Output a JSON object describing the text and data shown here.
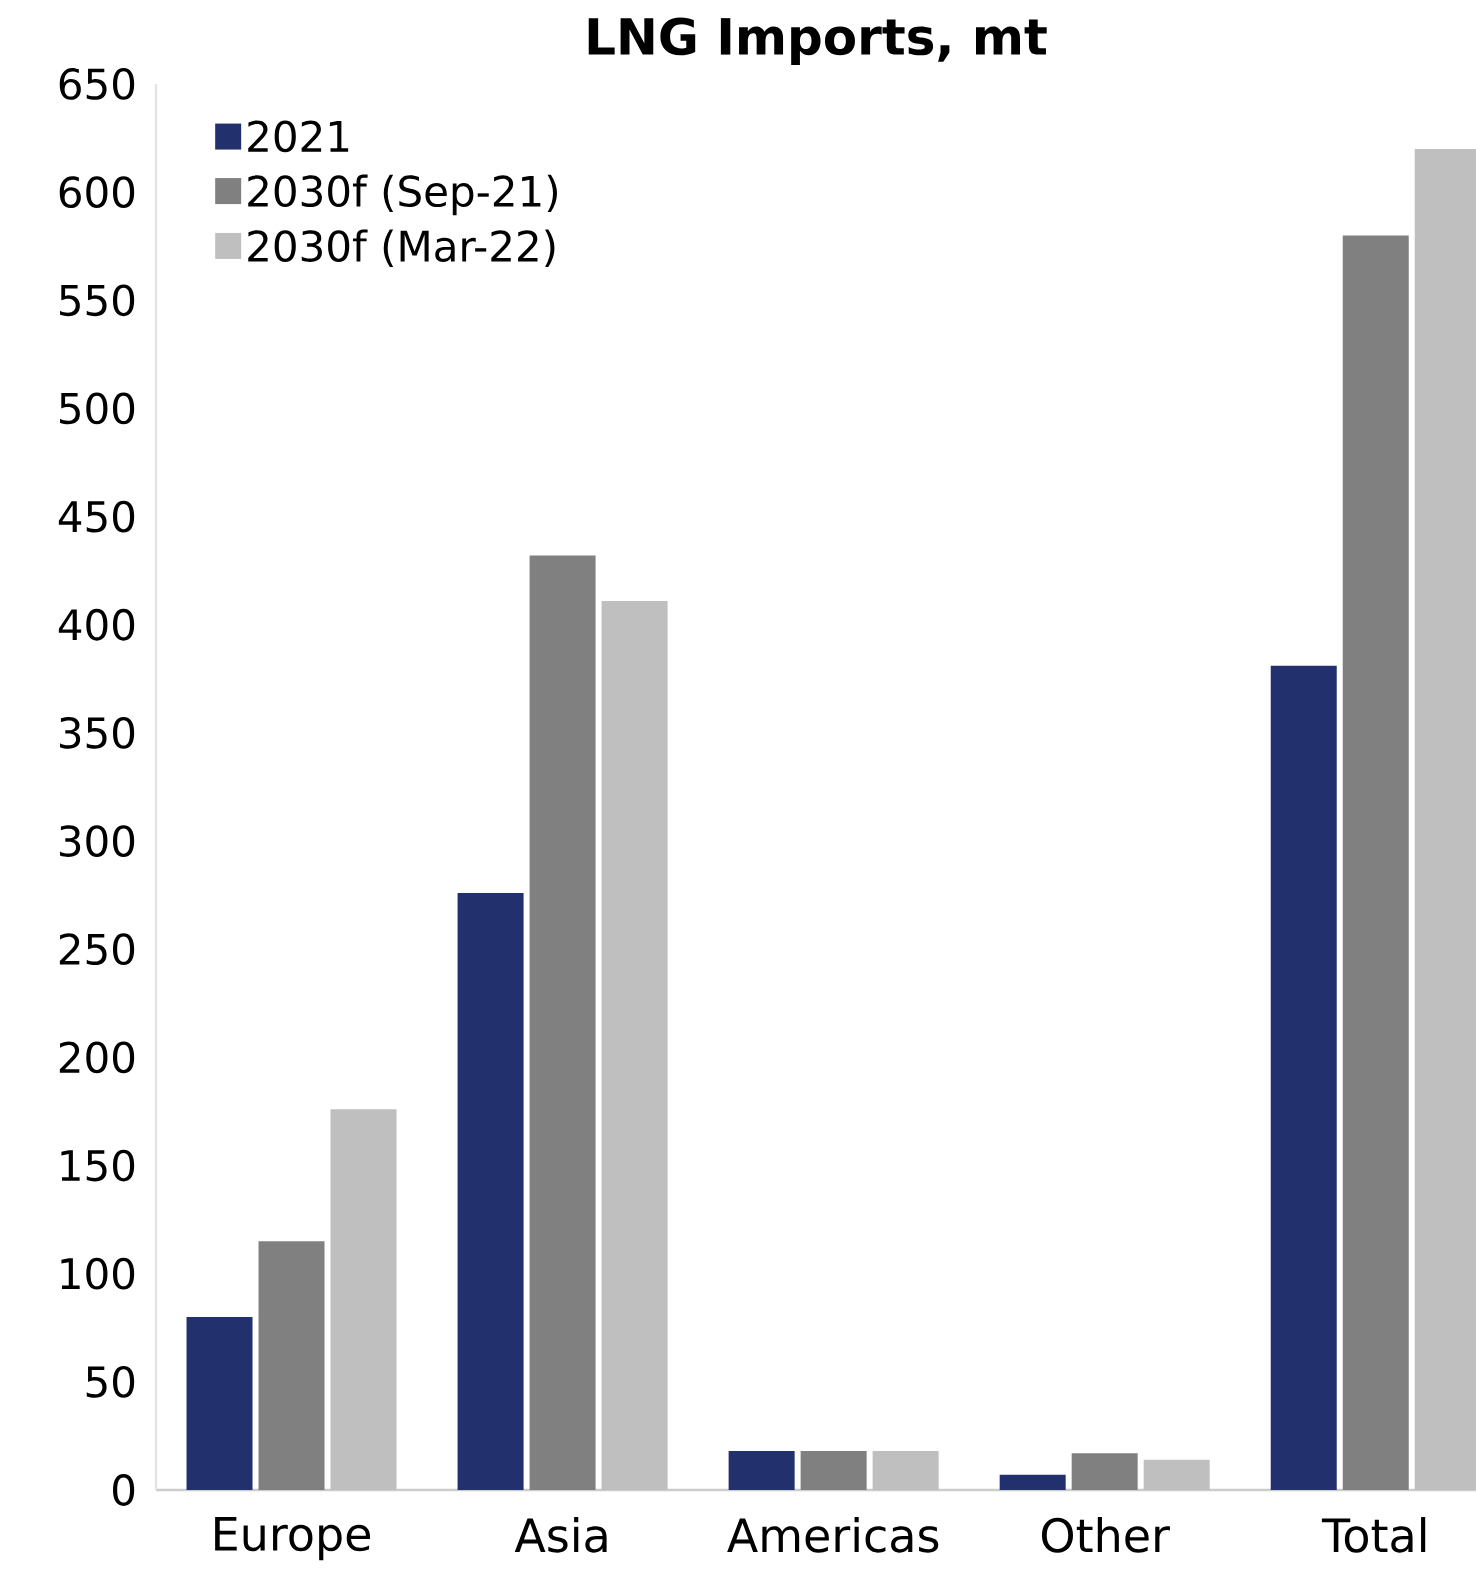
{
  "chart_data": {
    "type": "bar",
    "title": "LNG Imports, mt",
    "categories": [
      "Europe",
      "Asia",
      "Americas",
      "Other",
      "Total"
    ],
    "series": [
      {
        "name": "2021",
        "color": "#22306e",
        "values": [
          80,
          276,
          18,
          7,
          381
        ]
      },
      {
        "name": "2030f (Sep-21)",
        "color": "#808080",
        "values": [
          115,
          432,
          18,
          17,
          580
        ]
      },
      {
        "name": "2030f (Mar-22)",
        "color": "#bfbfbf",
        "values": [
          176,
          411,
          18,
          14,
          620
        ]
      }
    ],
    "ylim": [
      0,
      650
    ],
    "yticks": [
      0,
      50,
      100,
      150,
      200,
      250,
      300,
      350,
      400,
      450,
      500,
      550,
      600,
      650
    ],
    "grid": false,
    "legend": "top left"
  }
}
